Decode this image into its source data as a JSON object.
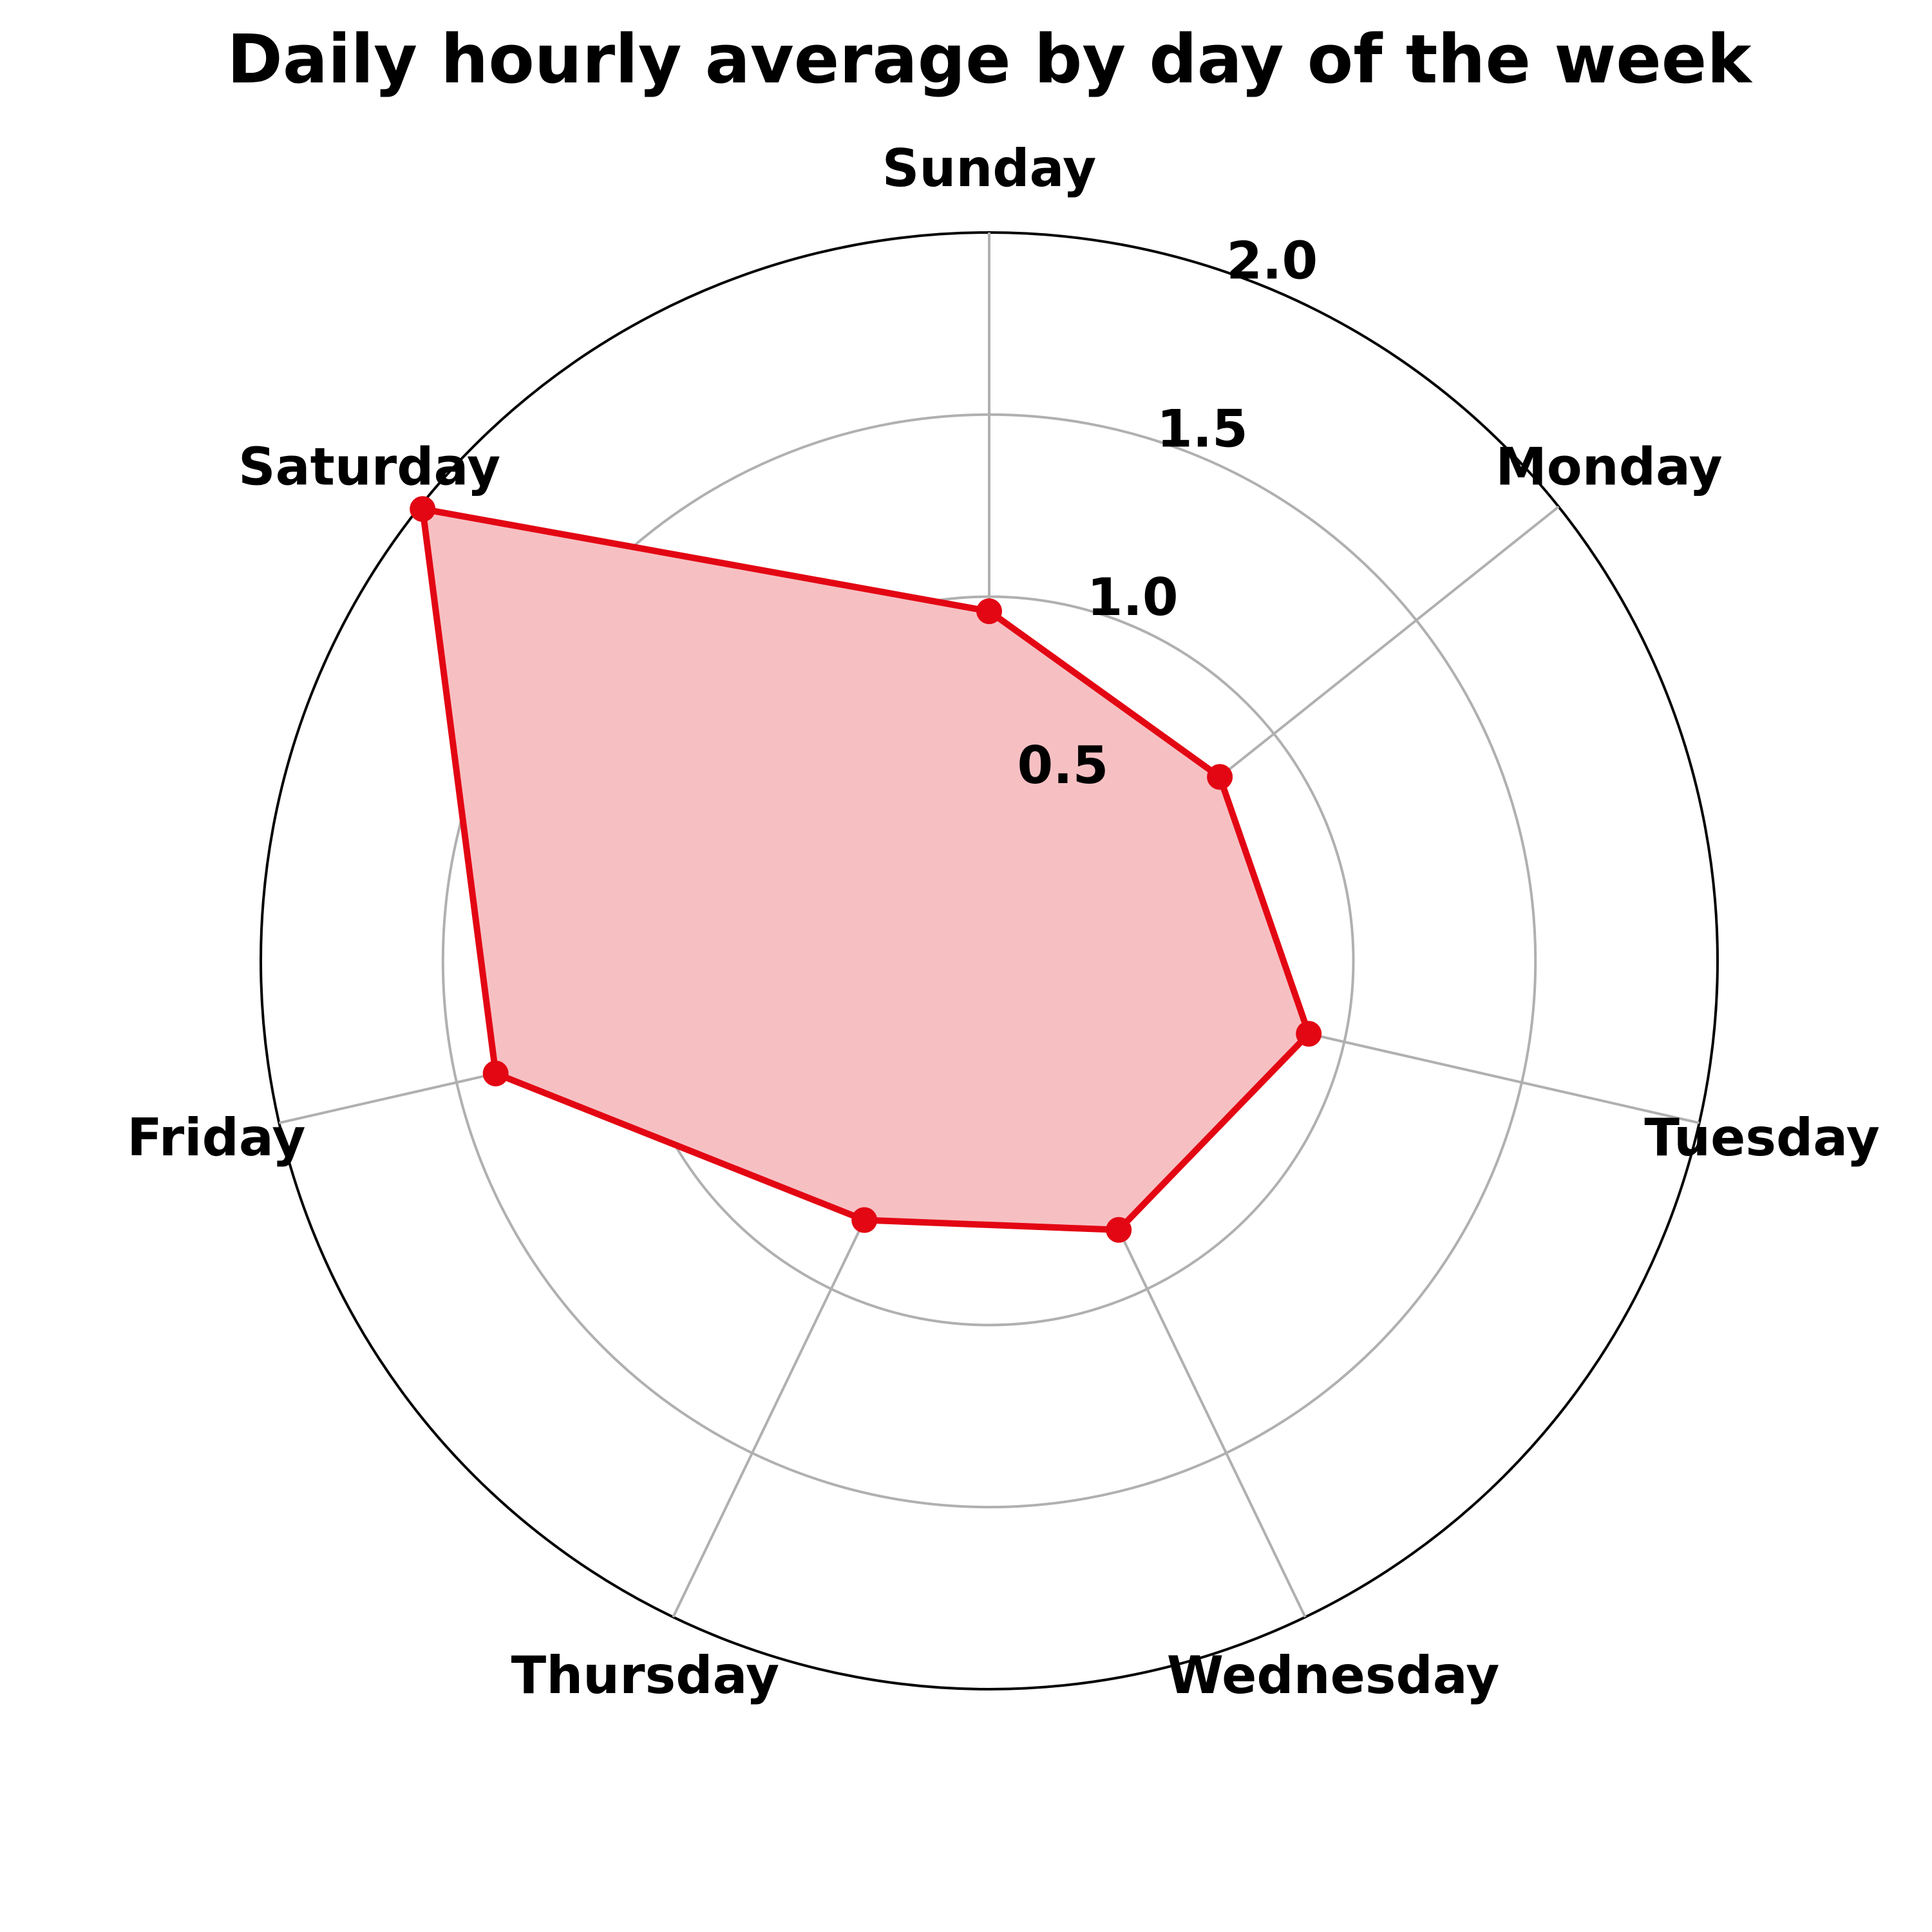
{
  "chart_data": {
    "type": "radar",
    "title": "Daily hourly average by day of the week",
    "categories": [
      "Sunday",
      "Monday",
      "Tuesday",
      "Wednesday",
      "Thursday",
      "Friday",
      "Saturday"
    ],
    "series": [
      {
        "values": [
          0.96,
          0.81,
          0.9,
          0.82,
          0.79,
          1.39,
          1.99
        ]
      }
    ],
    "rlim": [
      0,
      2.0
    ],
    "r_ticks": [
      0.5,
      1.0,
      1.5,
      2.0
    ],
    "r_tick_labels": [
      "0.5",
      "1.0",
      "1.5",
      "2.0"
    ],
    "grid": true,
    "colors": {
      "line": "#e30613",
      "fill": "#f6c0c3",
      "grid": "#b0b0b0",
      "outer_ring": "#000000"
    }
  }
}
